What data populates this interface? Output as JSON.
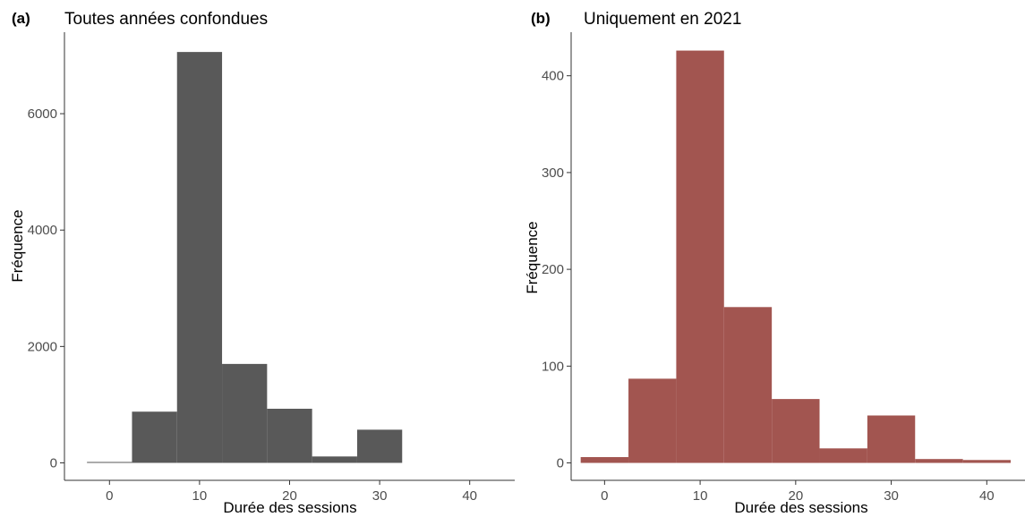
{
  "chart_data": [
    {
      "type": "bar",
      "panel_tag": "(a)",
      "title": "Toutes années confondues",
      "xlabel": "Durée des sessions",
      "ylabel": "Fréquence",
      "bin_width": 5,
      "bin_centers": [
        0,
        5,
        10,
        15,
        20,
        25,
        30
      ],
      "values": [
        10,
        880,
        7060,
        1700,
        930,
        110,
        570
      ],
      "xlim": [
        -5,
        45
      ],
      "ylim": [
        -300,
        7400
      ],
      "xticks": [
        "0",
        "10",
        "20",
        "30",
        "40"
      ],
      "yticks": [
        "0",
        "2000",
        "4000",
        "6000"
      ],
      "color": "#595959",
      "grid": false
    },
    {
      "type": "bar",
      "panel_tag": "(b)",
      "title": "Uniquement en 2021",
      "xlabel": "Durée des sessions",
      "ylabel": "Fréquence",
      "bin_width": 5,
      "bin_centers": [
        0,
        5,
        10,
        15,
        20,
        25,
        30,
        35,
        40
      ],
      "values": [
        6,
        87,
        426,
        161,
        66,
        15,
        49,
        4,
        3
      ],
      "xlim": [
        -3.5,
        44
      ],
      "ylim": [
        -18,
        445
      ],
      "xticks": [
        "0",
        "10",
        "20",
        "30",
        "40"
      ],
      "yticks": [
        "0",
        "100",
        "200",
        "300",
        "400"
      ],
      "color": "#a25550",
      "grid": false
    }
  ]
}
